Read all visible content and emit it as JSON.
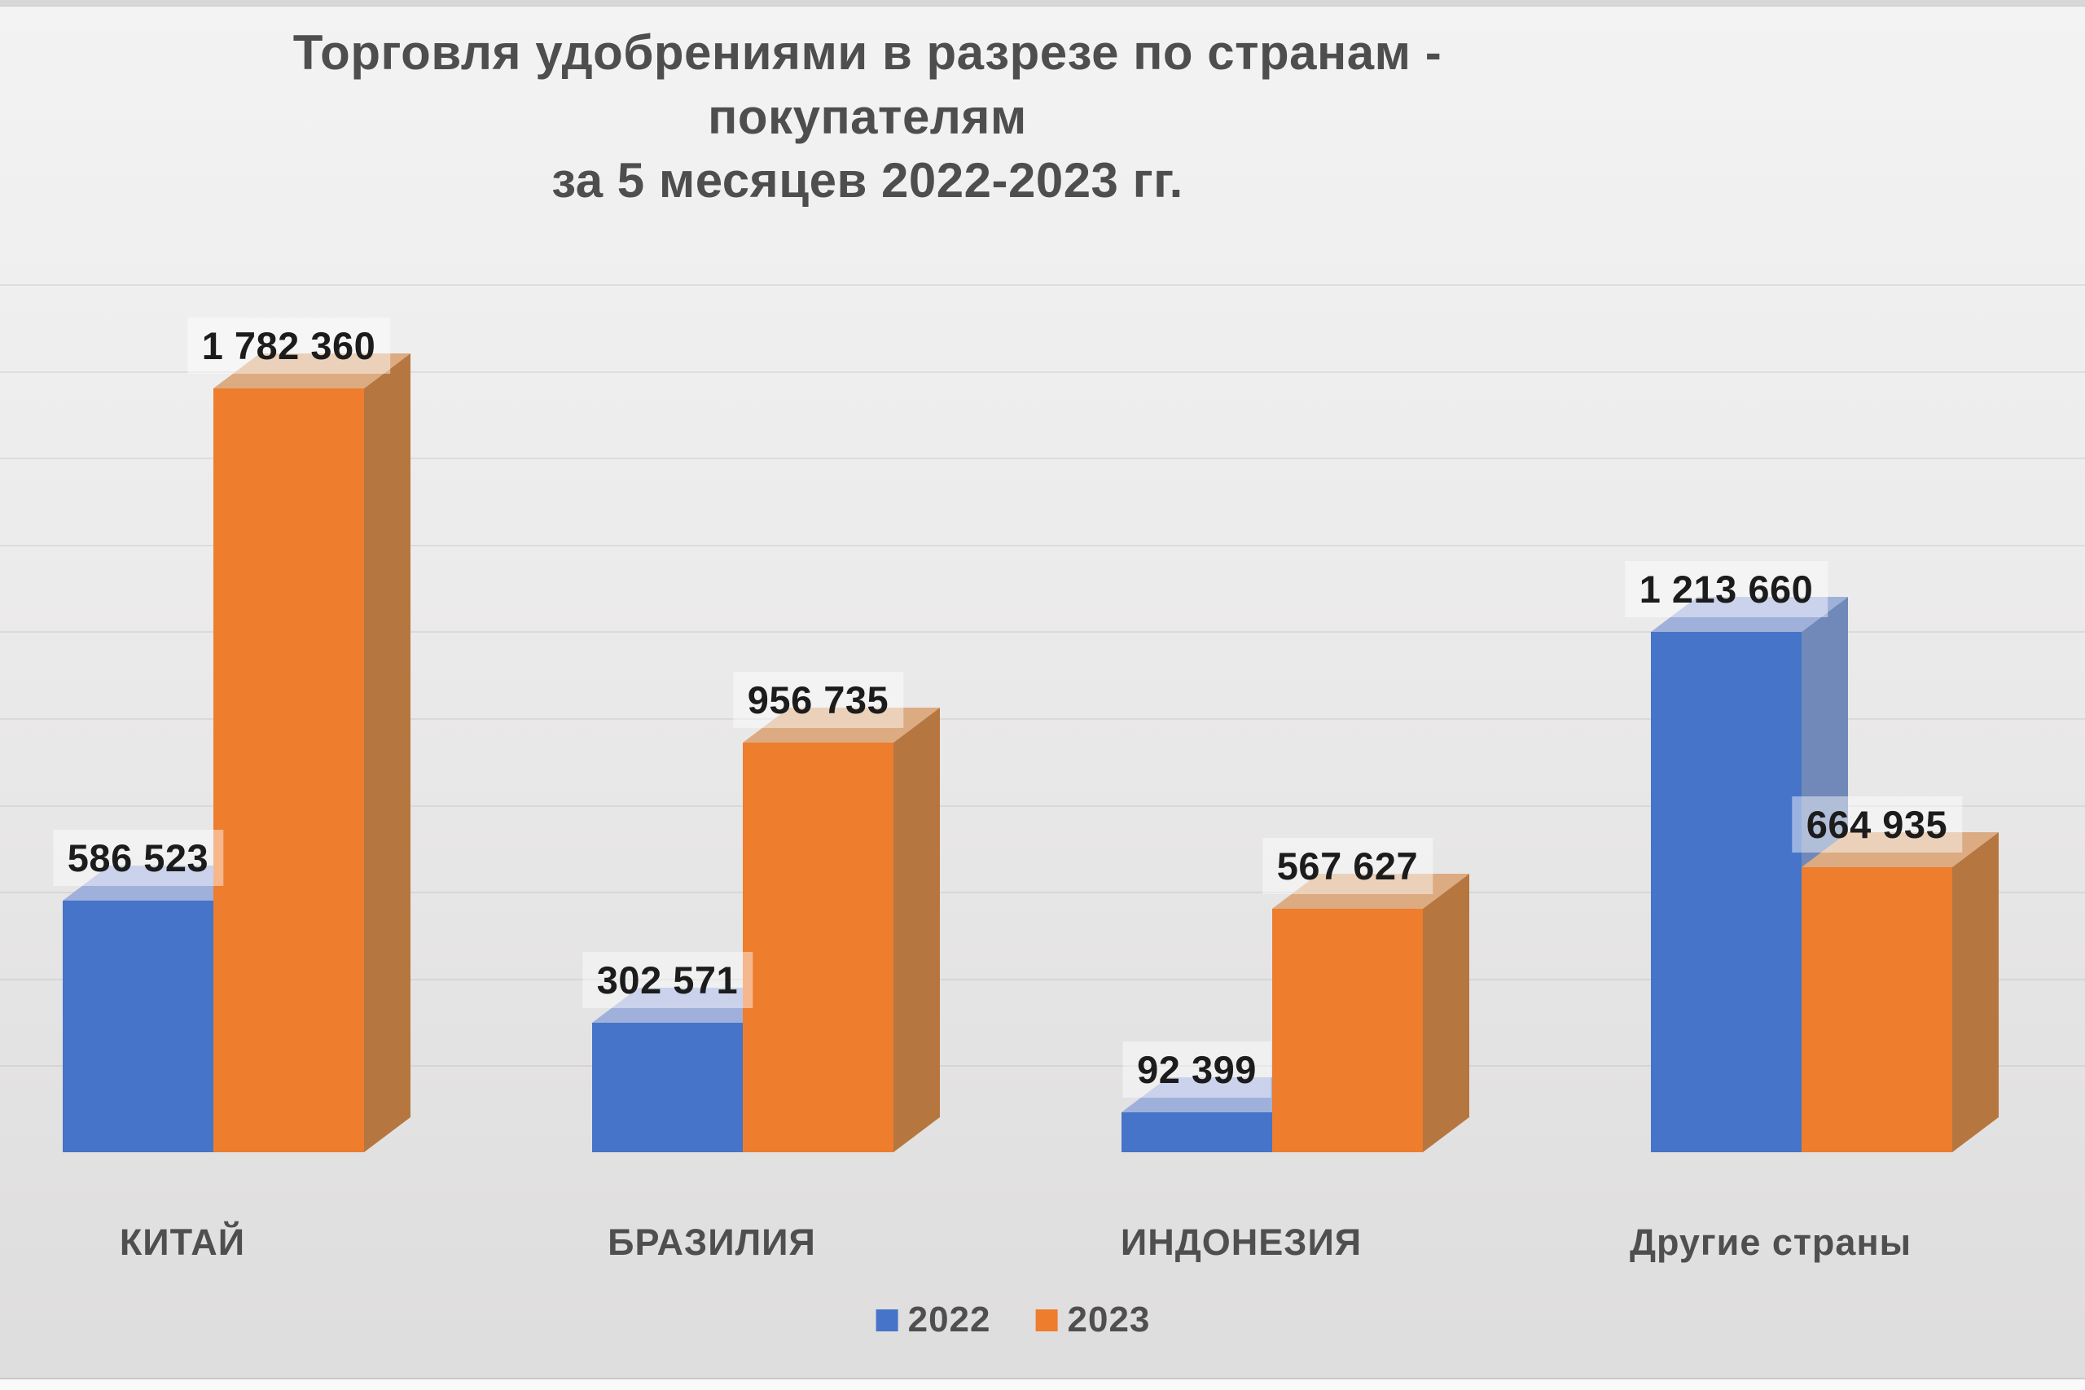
{
  "title": {
    "lines": [
      "Торговля удобрениями в разрезе по странам -",
      "покупателям",
      "за 5 месяцев 2022-2023 гг."
    ]
  },
  "chart_data": {
    "type": "bar",
    "variant": "3d-clustered-column",
    "title": "Торговля удобрениями в разрезе по странам - покупателям за 5 месяцев 2022-2023 гг.",
    "categories": [
      "КИТАЙ",
      "БРАЗИЛИЯ",
      "ИНДОНЕЗИЯ",
      "Другие страны"
    ],
    "series": [
      {
        "name": "2022",
        "color_front": "#4574C8",
        "color_top": "#9FB0DA",
        "color_side": "#7189B8",
        "values": [
          586523,
          302571,
          92399,
          1213660
        ],
        "value_labels": [
          "586 523",
          "302 571",
          "92 399",
          "1 213 660"
        ]
      },
      {
        "name": "2023",
        "color_front": "#EE7D2E",
        "color_top": "#DCAB81",
        "color_side": "#B5773F",
        "values": [
          1782360,
          956735,
          567627,
          664935
        ],
        "value_labels": [
          "1 782 360",
          "956 735",
          "567 627",
          "664 935"
        ]
      }
    ],
    "legend": {
      "position": "bottom",
      "entries": [
        "2022",
        "2023"
      ]
    },
    "value_axis": {
      "visible": false,
      "min": 0,
      "gridline_step": 200000
    },
    "data_labels": "above-bars",
    "ylim": [
      0,
      1900000
    ],
    "xlabel": "",
    "ylabel": ""
  },
  "colors": {
    "title_text": "#4e4e4e",
    "category_label_text": "#4f4f4f",
    "value_label_text": "#1c1c1c",
    "legend_text": "#4f4f4f",
    "value_label_background": "rgba(255,255,255,0.45)",
    "background_top": "#f3f3f3",
    "background_bottom": "#dedddd",
    "series_2022": "#4574C8",
    "series_2023": "#EE7D2E"
  }
}
